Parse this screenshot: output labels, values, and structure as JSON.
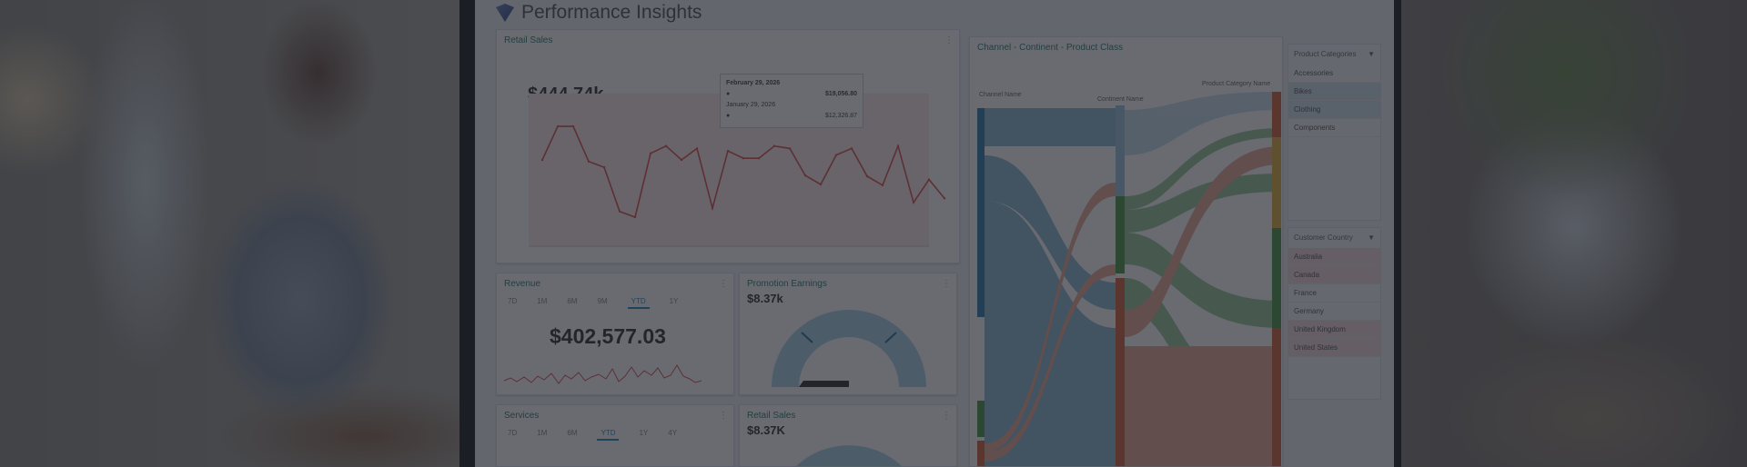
{
  "app": {
    "title": "Performance Insights"
  },
  "retail_sales": {
    "title": "Retail Sales",
    "value": "$444.74k",
    "tooltip": {
      "date1": "February 29, 2026",
      "value1": "$19,056.80",
      "date2": "January 29, 2026",
      "value2": "$12,326.87"
    },
    "series": [
      10.0,
      14.1,
      14.1,
      9.8,
      9.1,
      3.7,
      3.0,
      10.8,
      11.7,
      10.0,
      11.4,
      4.1,
      11.1,
      10.2,
      10.2,
      11.7,
      11.4,
      8.1,
      7.0,
      10.6,
      11.4,
      8.0,
      6.9,
      11.7,
      4.8,
      7.6,
      5.3
    ],
    "line_color": "#d9534f"
  },
  "revenue": {
    "title": "Revenue",
    "tabs": [
      "7D",
      "1M",
      "6M",
      "9M",
      "YTD",
      "1Y"
    ],
    "active_tab": "YTD",
    "value": "$402,577.03"
  },
  "promotion_earnings": {
    "title": "Promotion Earnings",
    "value": "$8.37k"
  },
  "services": {
    "title": "Services",
    "tabs": [
      "7D",
      "1M",
      "6M",
      "YTD",
      "1Y",
      "4Y"
    ],
    "active_tab": "YTD"
  },
  "retail_sales_gauge": {
    "title": "Retail Sales",
    "value": "$8.37K"
  },
  "sankey": {
    "title": "Channel - Continent - Product Class",
    "col1": "Channel Name",
    "col2": "Continent Name",
    "col3": "Product Category Name",
    "colors": {
      "blue": "#2f7fae",
      "green": "#4d9a4a",
      "orange": "#d2653f"
    }
  },
  "filters": {
    "product_categories": {
      "title": "Product Categories",
      "items": [
        "Accessories",
        "Bikes",
        "Clothing",
        "Components"
      ],
      "selected": [
        "Bikes",
        "Clothing"
      ]
    },
    "customer_country": {
      "title": "Customer Country",
      "items": [
        "Australia",
        "Canada",
        "France",
        "Germany",
        "United Kingdom",
        "United States"
      ],
      "selected": [
        "Australia",
        "Canada",
        "United Kingdom",
        "United States"
      ]
    }
  }
}
